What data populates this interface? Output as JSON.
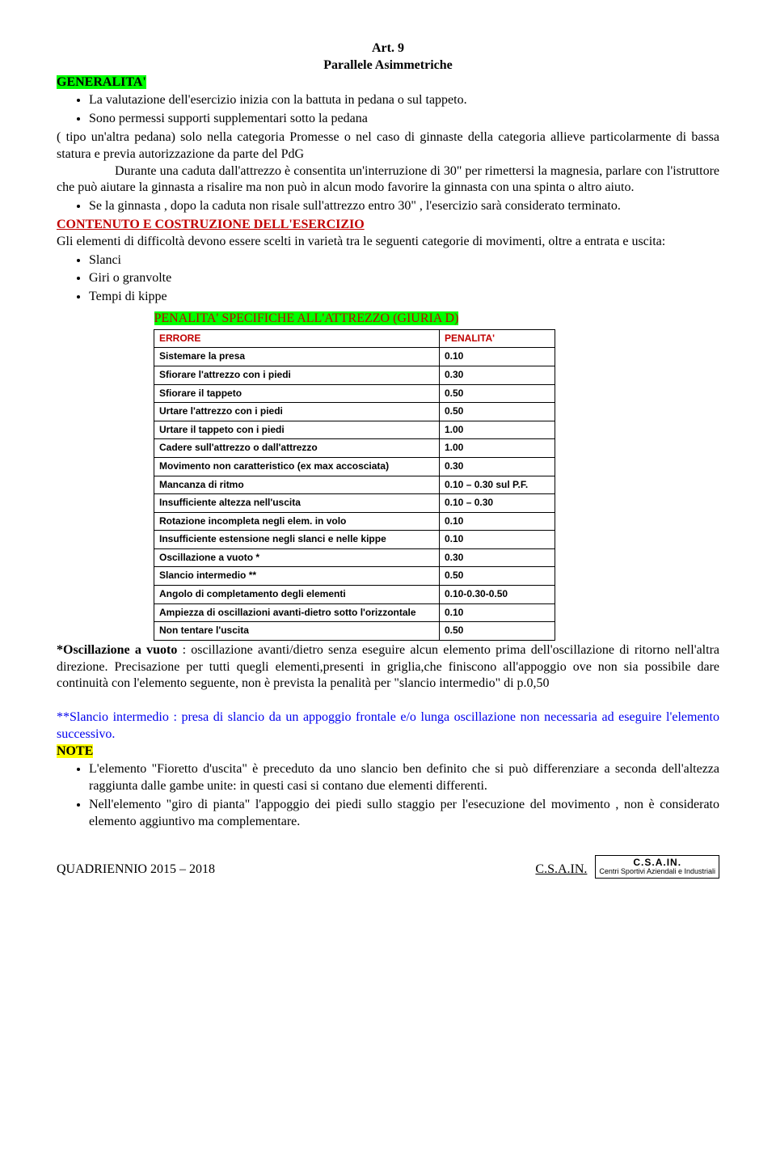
{
  "header": {
    "art_line": "Art. 9",
    "title": "Parallele Asimmetriche"
  },
  "generalita": {
    "heading": "GENERALITA'",
    "bullet1": "La valutazione dell'esercizio inizia con la battuta in pedana o sul tappeto.",
    "bullet2_part1": "Sono permessi supporti supplementari sotto la pedana",
    "bullet2_part2": "( tipo un'altra pedana) solo  nella categoria Promesse o nel caso di ginnaste della categoria     allieve particolarmente di bassa statura e previa autorizzazione da parte del PdG",
    "durante": "Durante una caduta dall'attrezzo è consentita un'interruzione di 30\" per rimettersi la magnesia, parlare con l'istruttore che può aiutare la ginnasta a risalire  ma non può in alcun modo favorire  la ginnasta con una spinta o altro aiuto.",
    "bullet3": "Se la ginnasta , dopo la caduta non risale sull'attrezzo entro 30\" , l'esercizio sarà considerato terminato."
  },
  "contenuto": {
    "heading": "CONTENUTO E COSTRUZIONE DELL'ESERCIZIO",
    "intro": "Gli elementi di difficoltà devono essere scelti in varietà tra le seguenti categorie di movimenti, oltre a entrata e uscita:",
    "items": [
      "Slanci",
      "Giri o granvolte",
      "Tempi di kippe"
    ]
  },
  "table": {
    "caption": "PENALITA' SPECIFICHE ALL'ATTREZZO (GIURIA D)",
    "header": {
      "c1": "ERRORE",
      "c2": "PENALITA'"
    },
    "rows": [
      {
        "c1": "Sistemare la presa",
        "c2": "0.10"
      },
      {
        "c1": "Sfiorare l'attrezzo con i piedi",
        "c2": "0.30"
      },
      {
        "c1": "Sfiorare il tappeto",
        "c2": "0.50"
      },
      {
        "c1": "Urtare l'attrezzo con i piedi",
        "c2": "0.50"
      },
      {
        "c1": "Urtare il tappeto con i piedi",
        "c2": "1.00"
      },
      {
        "c1": "Cadere sull'attrezzo o dall'attrezzo",
        "c2": "1.00"
      },
      {
        "c1": "Movimento non caratteristico (ex max accosciata)",
        "c2": "0.30"
      },
      {
        "c1": "Mancanza di ritmo",
        "c2": "0.10 – 0.30    sul P.F."
      },
      {
        "c1": "Insufficiente altezza nell'uscita",
        "c2": "0.10 – 0.30"
      },
      {
        "c1": "Rotazione incompleta negli elem. in volo",
        "c2": "0.10"
      },
      {
        "c1": "Insufficiente estensione negli slanci e nelle kippe",
        "c2": "0.10"
      },
      {
        "c1": "Oscillazione a vuoto *",
        "c2": "0.30"
      },
      {
        "c1": "Slancio intermedio **",
        "c2": "0.50"
      },
      {
        "c1": "Angolo di completamento degli elementi",
        "c2": "0.10-0.30-0.50"
      },
      {
        "c1": "Ampiezza di oscillazioni avanti-dietro sotto l'orizzontale",
        "c2": "0.10"
      },
      {
        "c1": "Non tentare l'uscita",
        "c2": "0.50"
      }
    ]
  },
  "oscillazione": {
    "lead": "*Oscillazione a vuoto",
    "text": " : oscillazione avanti/dietro senza eseguire alcun elemento prima dell'oscillazione di ritorno nell'altra direzione. Precisazione per tutti quegli elementi,presenti in griglia,che finiscono all'appoggio ove non sia possibile dare continuità con l'elemento seguente, non è prevista la penalità per \"slancio intermedio\" di p.0,50"
  },
  "slancio": "**Slancio intermedio : presa di slancio da un appoggio frontale e/o lunga oscillazione non necessaria ad eseguire l'elemento successivo.",
  "note": {
    "heading": "NOTE",
    "bullet1": "L'elemento \"Fioretto d'uscita\" è preceduto da uno slancio ben definito che si può differenziare a seconda dell'altezza raggiunta dalle gambe unite: in questi casi si contano due elementi differenti.",
    "bullet2": "Nell'elemento \"giro di pianta\" l'appoggio dei piedi sullo staggio per l'esecuzione del movimento , non è considerato elemento aggiuntivo ma complementare."
  },
  "footer": {
    "left": "QUADRIENNIO 2015 – 2018",
    "right": "C.S.A.IN.",
    "logo_top": "C.S.A.IN.",
    "logo_sub": "Centri Sportivi Aziendali e Industriali"
  }
}
